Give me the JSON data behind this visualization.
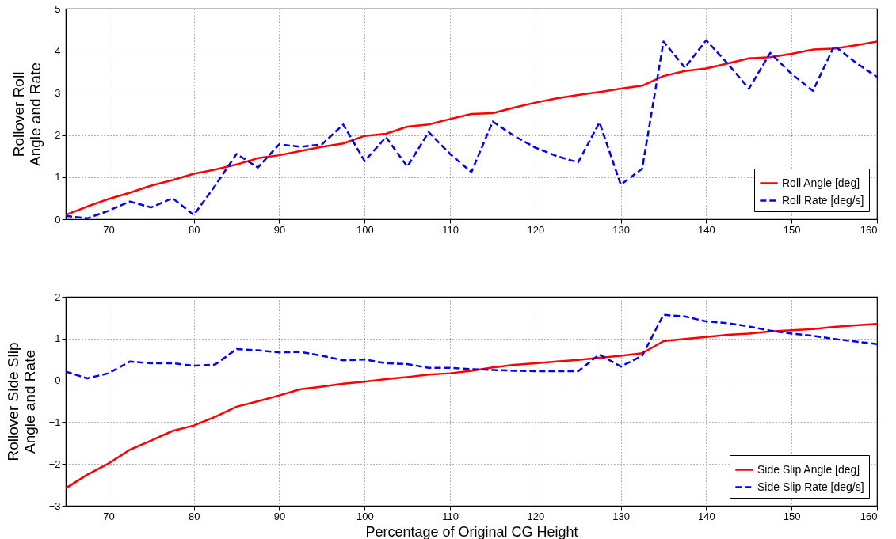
{
  "chart_data": [
    {
      "type": "line",
      "ylabel": "Rollover Roll\nAngle and Rate",
      "x": [
        65,
        67.5,
        70,
        72.5,
        75,
        77.5,
        80,
        82.5,
        85,
        87.5,
        90,
        92.5,
        95,
        97.5,
        100,
        102.5,
        105,
        107.5,
        110,
        112.5,
        115,
        117.5,
        120,
        122.5,
        125,
        127.5,
        130,
        132.5,
        135,
        137.5,
        140,
        142.5,
        145,
        147.5,
        150,
        152.5,
        155,
        157.5,
        160
      ],
      "series": [
        {
          "name": "Roll Angle [deg]",
          "color": "#ff0000",
          "line_style": "solid",
          "values": [
            0.1,
            0.3,
            0.48,
            0.63,
            0.8,
            0.93,
            1.08,
            1.18,
            1.3,
            1.45,
            1.52,
            1.62,
            1.72,
            1.8,
            1.98,
            2.03,
            2.2,
            2.25,
            2.38,
            2.5,
            2.52,
            2.65,
            2.77,
            2.87,
            2.95,
            3.02,
            3.1,
            3.17,
            3.4,
            3.52,
            3.58,
            3.7,
            3.82,
            3.85,
            3.93,
            4.03,
            4.05,
            4.13,
            4.22
          ]
        },
        {
          "name": "Roll Rate [deg/s]",
          "color": "#0000ff",
          "line_style": "dashed",
          "values": [
            0.08,
            0.02,
            0.2,
            0.42,
            0.28,
            0.5,
            0.1,
            0.8,
            1.55,
            1.23,
            1.78,
            1.72,
            1.78,
            2.25,
            1.38,
            1.95,
            1.25,
            2.07,
            1.55,
            1.12,
            2.32,
            1.98,
            1.7,
            1.5,
            1.35,
            2.3,
            0.82,
            1.2,
            4.22,
            3.6,
            4.25,
            3.7,
            3.1,
            3.95,
            3.45,
            3.05,
            4.12,
            3.72,
            3.38
          ]
        }
      ],
      "xlim": [
        65,
        160
      ],
      "xticks": [
        70,
        80,
        90,
        100,
        110,
        120,
        130,
        140,
        150,
        160
      ],
      "ylim": [
        0,
        5
      ],
      "yticks": [
        0,
        1,
        2,
        3,
        4,
        5
      ],
      "grid": true,
      "legend": "bottom right"
    },
    {
      "type": "line",
      "ylabel": "Rollover Side Slip\nAngle and Rate",
      "xlabel": "Percentage of Original CG Height",
      "x": [
        65,
        67.5,
        70,
        72.5,
        75,
        77.5,
        80,
        82.5,
        85,
        87.5,
        90,
        92.5,
        95,
        97.5,
        100,
        102.5,
        105,
        107.5,
        110,
        112.5,
        115,
        117.5,
        120,
        122.5,
        125,
        127.5,
        130,
        132.5,
        135,
        137.5,
        140,
        142.5,
        145,
        147.5,
        150,
        152.5,
        155,
        157.5,
        160
      ],
      "series": [
        {
          "name": "Side Slip Angle [deg]",
          "color": "#ff0000",
          "line_style": "solid",
          "values": [
            -2.58,
            -2.26,
            -1.99,
            -1.66,
            -1.44,
            -1.21,
            -1.08,
            -0.87,
            -0.63,
            -0.5,
            -0.36,
            -0.21,
            -0.15,
            -0.08,
            -0.03,
            0.03,
            0.08,
            0.14,
            0.17,
            0.23,
            0.31,
            0.37,
            0.41,
            0.45,
            0.49,
            0.54,
            0.59,
            0.65,
            0.94,
            0.99,
            1.04,
            1.09,
            1.12,
            1.17,
            1.2,
            1.23,
            1.28,
            1.32,
            1.35
          ]
        },
        {
          "name": "Side Slip Rate [deg/s]",
          "color": "#0000ff",
          "line_style": "dashed",
          "values": [
            0.21,
            0.05,
            0.17,
            0.45,
            0.41,
            0.41,
            0.35,
            0.38,
            0.75,
            0.72,
            0.67,
            0.68,
            0.59,
            0.48,
            0.5,
            0.41,
            0.39,
            0.3,
            0.3,
            0.27,
            0.25,
            0.23,
            0.22,
            0.22,
            0.22,
            0.62,
            0.33,
            0.59,
            1.57,
            1.53,
            1.41,
            1.37,
            1.29,
            1.19,
            1.12,
            1.07,
            0.99,
            0.93,
            0.87
          ]
        }
      ],
      "xlim": [
        65,
        160
      ],
      "xticks": [
        70,
        80,
        90,
        100,
        110,
        120,
        130,
        140,
        150,
        160
      ],
      "ylim": [
        -3,
        2
      ],
      "yticks": [
        -3,
        -2,
        -1,
        0,
        1,
        2
      ],
      "grid": true,
      "legend": "bottom right"
    }
  ]
}
